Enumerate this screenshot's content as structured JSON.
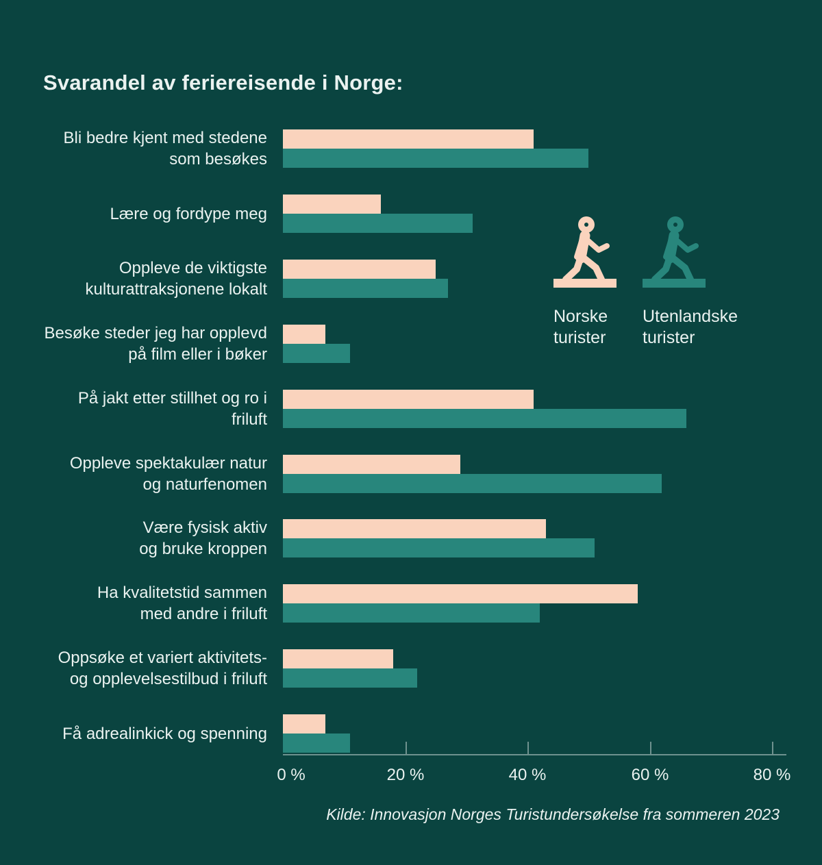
{
  "title": "Svarandel av feriereisende i Norge:",
  "colors": {
    "background": "#0a4440",
    "norwegian_pink": "#fad3bd",
    "foreign_teal": "#28867c",
    "text": "#eaf2f0",
    "axis": "rgba(234,242,240,0.45)"
  },
  "legend": {
    "items": [
      {
        "icon": "walking-person-icon",
        "color_key": "norwegian_pink",
        "label": "Norske turister"
      },
      {
        "icon": "walking-person-icon",
        "color_key": "foreign_teal",
        "label": "Utenlandske turister"
      }
    ]
  },
  "chart_data": {
    "type": "bar",
    "orientation": "horizontal",
    "unit": "%",
    "title": "Svarandel av feriereisende i Norge:",
    "categories": [
      [
        "Bli bedre kjent med stedene",
        "som besøkes"
      ],
      [
        "Lære og fordype meg"
      ],
      [
        "Oppleve de viktigste",
        "kulturattraksjonene lokalt"
      ],
      [
        "Besøke steder jeg har opplevd",
        "på film eller i bøker"
      ],
      [
        "På jakt etter stillhet og ro i friluft"
      ],
      [
        "Oppleve spektakulær natur",
        "og naturfenomen"
      ],
      [
        "Være fysisk aktiv",
        "og bruke kroppen"
      ],
      [
        "Ha kvalitetstid sammen",
        "med andre i friluft"
      ],
      [
        "Oppsøke et variert aktivitets-",
        "og opplevelsestilbud i friluft"
      ],
      [
        "Få adrealinkick og spenning"
      ]
    ],
    "series": [
      {
        "name": "Norske turister",
        "color_key": "norwegian_pink",
        "values": [
          41,
          16,
          25,
          7,
          41,
          29,
          43,
          58,
          18,
          7
        ]
      },
      {
        "name": "Utenlandske turister",
        "color_key": "foreign_teal",
        "values": [
          50,
          31,
          27,
          11,
          66,
          62,
          51,
          42,
          22,
          11
        ]
      }
    ],
    "x_axis": {
      "tick_labels": [
        "0 %",
        "20 %",
        "40 %",
        "60 %",
        "80 %"
      ],
      "tick_values": [
        0,
        20,
        40,
        60,
        80
      ],
      "min": 0,
      "max": 80,
      "grid": false
    },
    "legend_position": "right-upper"
  },
  "source": "Kilde: Innovasjon Norges Turistundersøkelse fra sommeren 2023"
}
